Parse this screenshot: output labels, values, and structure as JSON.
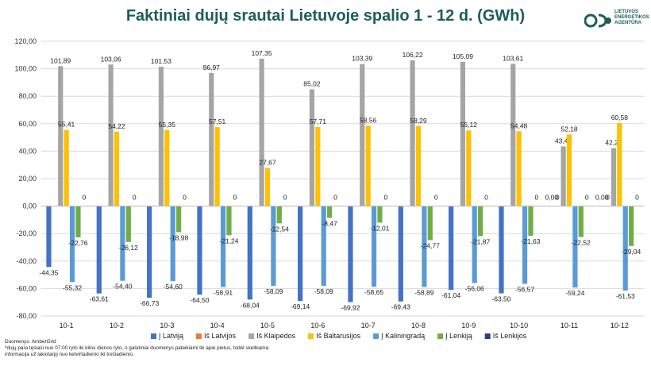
{
  "title": "Faktiniai dujų srautai Lietuvoje spalio 1 - 12 d. (GWh)",
  "logo": {
    "text": "LIETUVOS\nENERGETIKOS\nAGENTŪRA",
    "icon": "leta-logo-icon"
  },
  "footer": {
    "source": "Duomenys: AmberGrid",
    "note1": "*dujų para tęsiasi nuo 07:00 ryto iki kitos dienos ryto, o galutiniai duomenys pateikiami tik apie pietus, todėl skelbiama",
    "note2": "informacija už lakiotarpį nuo ketvirtadienio iki trečiadienio."
  },
  "colors": {
    "i_latvija": "#4472c4",
    "is_latvijos": "#ed7d31",
    "is_klaipedos": "#a5a5a5",
    "is_baltarusijos": "#ffc000",
    "i_kaliningrada": "#5b9bd5",
    "i_lenkija": "#70ad47",
    "is_lenkijos": "#264478",
    "grid": "#d9d9d9",
    "title": "#1d5e57"
  },
  "chart_data": {
    "type": "bar",
    "title": "Faktiniai dujų srautai Lietuvoje spalio 1 - 12 d. (GWh)",
    "ylim": [
      -80,
      120
    ],
    "yticks": [
      "-80,00",
      "-60,00",
      "-40,00",
      "-20,00",
      "0,00",
      "20,00",
      "40,00",
      "60,00",
      "80,00",
      "100,00",
      "120,00"
    ],
    "grid": true,
    "legend_position": "bottom",
    "categories": [
      "10-1",
      "10-2",
      "10-3",
      "10-4",
      "10-5",
      "10-6",
      "10-7",
      "10-8",
      "10-9",
      "10-10",
      "10-11",
      "10-12"
    ],
    "series": [
      {
        "name": "Į Latviją",
        "color_key": "i_latvija",
        "values": [
          -44.35,
          -63.61,
          -66.73,
          -64.5,
          -68.04,
          -69.14,
          -69.92,
          -69.43,
          -61.04,
          -63.5,
          0,
          0
        ],
        "labels": [
          "-44,35",
          "-63,61",
          "-66,73",
          "-64,50",
          "-68,04",
          "-69,14",
          "-69,92",
          "-69,43",
          "-61,04",
          "-63,50",
          "0,00",
          "0,00"
        ]
      },
      {
        "name": "Iš Latvijos",
        "color_key": "is_latvijos",
        "values": [
          0,
          0,
          0,
          0,
          0,
          0,
          0,
          0,
          0,
          0,
          0,
          0
        ],
        "labels": [
          "",
          "",
          "",
          "",
          "",
          "",
          "",
          "",
          "",
          "",
          "0",
          "0"
        ]
      },
      {
        "name": "Iš Klaipėdos",
        "color_key": "is_klaipedos",
        "values": [
          101.89,
          103.06,
          101.53,
          96.97,
          107.35,
          85.02,
          103.39,
          106.22,
          105.09,
          103.61,
          43.46,
          42.21
        ],
        "labels": [
          "101,89",
          "103,06",
          "101,53",
          "96,97",
          "107,35",
          "85,02",
          "103,39",
          "106,22",
          "105,09",
          "103,61",
          "43,46",
          "42,21"
        ]
      },
      {
        "name": "Iš Baltarusijos",
        "color_key": "is_baltarusijos",
        "values": [
          55.41,
          54.22,
          55.35,
          57.51,
          27.67,
          57.71,
          58.56,
          58.29,
          55.12,
          54.48,
          52.18,
          60.58
        ],
        "labels": [
          "55,41",
          "54,22",
          "55,35",
          "57,51",
          "27,67",
          "57,71",
          "58,56",
          "58,29",
          "55,12",
          "54,48",
          "52,18",
          "60,58"
        ]
      },
      {
        "name": "Į Kaliningradą",
        "color_key": "i_kaliningrada",
        "values": [
          -55.32,
          -54.4,
          -54.6,
          -58.91,
          -58.09,
          -58.09,
          -58.65,
          -58.89,
          -56.06,
          -56.57,
          -59.24,
          -61.53
        ],
        "labels": [
          "-55,32",
          "-54,40",
          "-54,60",
          "-58,91",
          "-58,09",
          "-58,09",
          "-58,65",
          "-58,89",
          "-56,06",
          "-56,57",
          "-59,24",
          "-61,53"
        ]
      },
      {
        "name": "Į Lenkiją",
        "color_key": "i_lenkija",
        "values": [
          -22.76,
          -26.12,
          -18.98,
          -21.24,
          -12.54,
          -8.47,
          -12.01,
          -24.77,
          -21.87,
          -21.63,
          -22.52,
          -29.04
        ],
        "labels": [
          "-22,76",
          "-26,12",
          "-18,98",
          "-21,24",
          "-12,54",
          "-8,47",
          "-12,01",
          "-24,77",
          "-21,87",
          "-21,63",
          "-22,52",
          "-29,04"
        ]
      },
      {
        "name": "Iš Lenkijos",
        "color_key": "is_lenkijos",
        "values": [
          0,
          0,
          0,
          0,
          0,
          0,
          0,
          0,
          0,
          0,
          0,
          0
        ],
        "labels": [
          "0",
          "0",
          "0",
          "0",
          "0",
          "0",
          "0",
          "0",
          "0",
          "0",
          "0",
          "0"
        ]
      }
    ],
    "zero_labels_left": [
      "0",
      "0",
      "0",
      "0",
      "0",
      "0",
      "0",
      "0",
      "0",
      "0",
      "",
      ""
    ]
  }
}
